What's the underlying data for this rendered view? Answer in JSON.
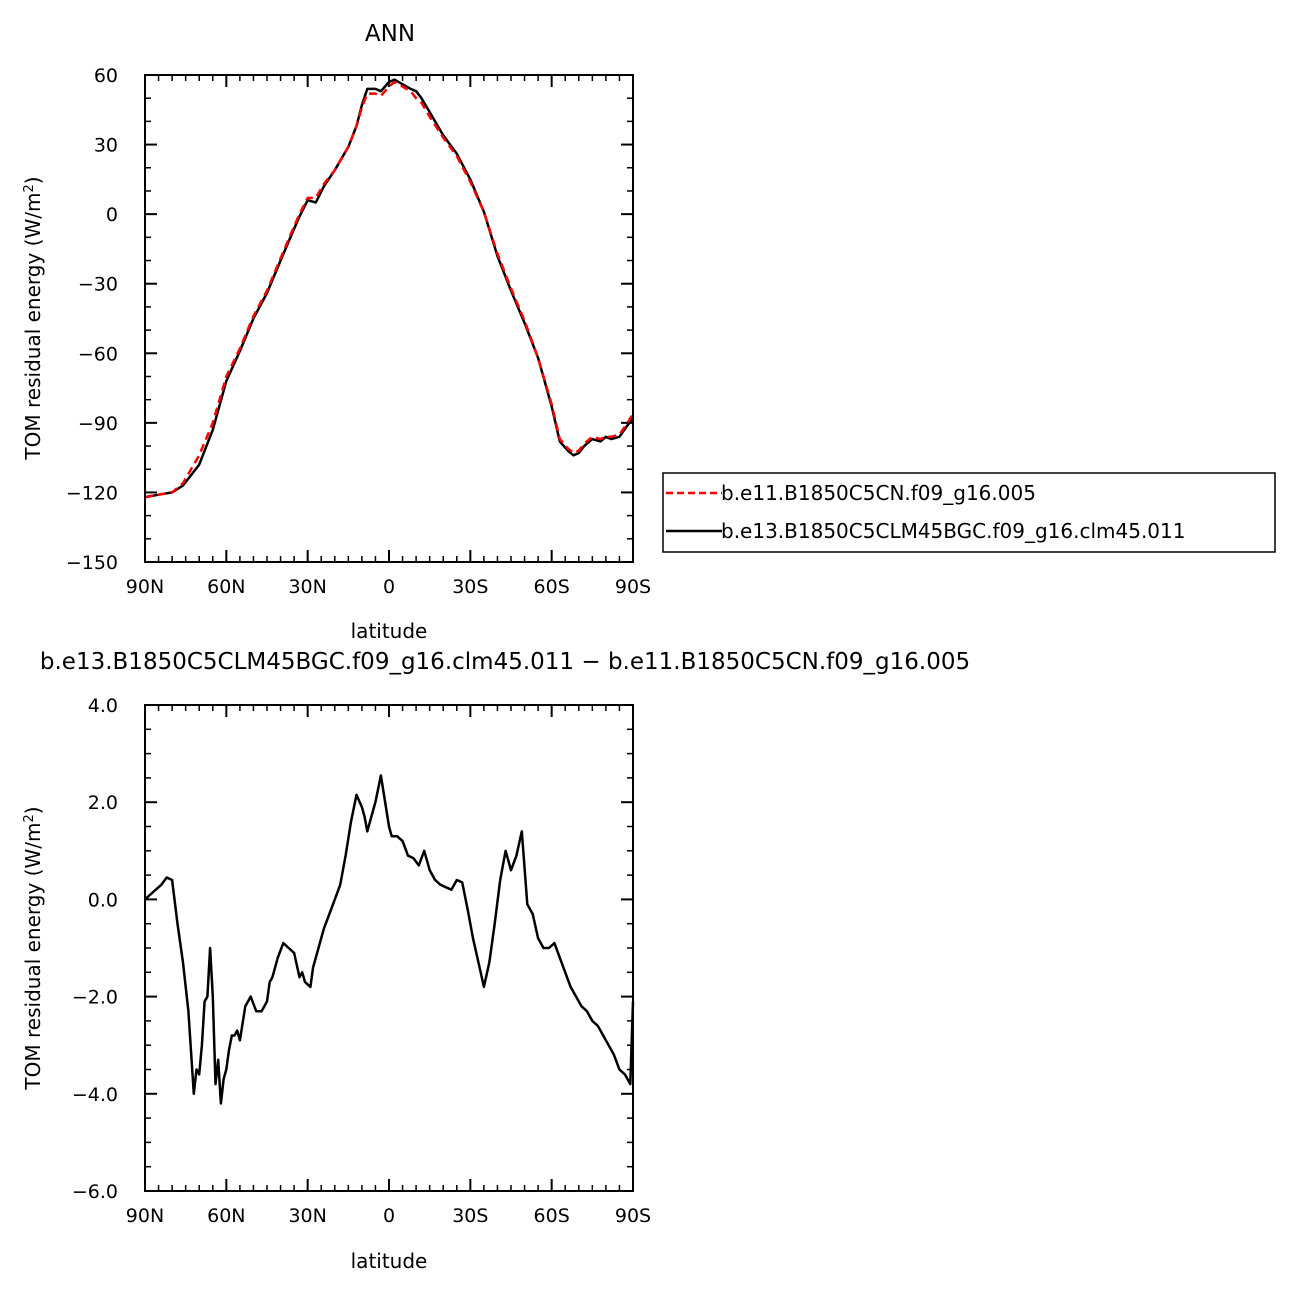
{
  "chart_data": [
    {
      "type": "line",
      "title": "ANN",
      "xlabel": "latitude",
      "ylabel_main": "TOM residual energy (W/m",
      "ylabel_sup": "2",
      "ylabel_close": ")",
      "xlim": [
        90,
        -90
      ],
      "ylim": [
        -150,
        60
      ],
      "x_ticks": [
        90,
        60,
        30,
        0,
        -30,
        -60,
        -90
      ],
      "x_tick_labels": [
        "90N",
        "60N",
        "30N",
        "0",
        "30S",
        "60S",
        "90S"
      ],
      "y_ticks": [
        60,
        30,
        0,
        -30,
        -60,
        -90,
        -120,
        -150
      ],
      "y_tick_labels": [
        "60",
        "30",
        "0",
        "−30",
        "−60",
        "−90",
        "−120",
        "−150"
      ],
      "legend_position": "right",
      "series": [
        {
          "name": "b.e11.B1850C5CN.f09_g16.005",
          "color": "#ff0000",
          "dashed": true,
          "x": [
            90,
            85,
            80,
            76,
            72,
            70,
            65,
            60,
            55,
            50,
            45,
            40,
            36,
            33,
            30,
            27,
            24,
            20,
            15,
            12,
            10,
            8,
            5,
            3,
            0,
            -2,
            -5,
            -8,
            -10,
            -12,
            -15,
            -20,
            -25,
            -30,
            -35,
            -40,
            -45,
            -50,
            -55,
            -60,
            -63,
            -66,
            -68,
            -70,
            -72,
            -75,
            -78,
            -80,
            -82,
            -85,
            -88,
            -90
          ],
          "y": [
            -122,
            -121,
            -120,
            -116,
            -108,
            -104,
            -90,
            -70,
            -58,
            -44,
            -33,
            -19,
            -8,
            0,
            7,
            7,
            13,
            19,
            29,
            38,
            46,
            52,
            52,
            51,
            55,
            57,
            55,
            53,
            50,
            48,
            42,
            33,
            25,
            14,
            1,
            -17,
            -32,
            -46,
            -62,
            -82,
            -97,
            -101,
            -103,
            -102,
            -99,
            -96,
            -97,
            -96,
            -96,
            -95,
            -90,
            -86
          ]
        },
        {
          "name": "b.e13.B1850C5CLM45BGC.f09_g16.clm45.011",
          "color": "#000000",
          "dashed": false,
          "x": [
            90,
            85,
            80,
            76,
            72,
            70,
            65,
            60,
            55,
            50,
            45,
            40,
            36,
            33,
            30,
            27,
            24,
            20,
            15,
            12,
            10,
            8,
            5,
            3,
            0,
            -2,
            -5,
            -8,
            -10,
            -12,
            -15,
            -20,
            -25,
            -30,
            -35,
            -40,
            -45,
            -50,
            -55,
            -60,
            -63,
            -66,
            -68,
            -70,
            -72,
            -75,
            -78,
            -80,
            -82,
            -85,
            -88,
            -90
          ],
          "y": [
            -122,
            -121,
            -120,
            -117,
            -111,
            -108,
            -93,
            -72,
            -59,
            -45,
            -34,
            -20,
            -9,
            -1,
            6,
            5,
            12,
            19,
            29,
            38,
            47,
            54,
            54,
            53,
            57,
            58,
            56,
            54,
            53,
            50,
            44,
            34,
            26,
            15,
            1,
            -18,
            -33,
            -47,
            -62,
            -83,
            -98,
            -102,
            -104,
            -103,
            -100,
            -97,
            -98,
            -96,
            -97,
            -96,
            -91,
            -88
          ]
        }
      ]
    },
    {
      "type": "line",
      "title": "b.e13.B1850C5CLM45BGC.f09_g16.clm45.011 − b.e11.B1850C5CN.f09_g16.005",
      "xlabel": "latitude",
      "ylabel_main": "TOM residual energy (W/m",
      "ylabel_sup": "2",
      "ylabel_close": ")",
      "xlim": [
        90,
        -90
      ],
      "ylim": [
        -6.0,
        4.0
      ],
      "x_ticks": [
        90,
        60,
        30,
        0,
        -30,
        -60,
        -90
      ],
      "x_tick_labels": [
        "90N",
        "60N",
        "30N",
        "0",
        "30S",
        "60S",
        "90S"
      ],
      "y_ticks": [
        4,
        2,
        0,
        -2,
        -4,
        -6
      ],
      "y_tick_labels": [
        "4.0",
        "2.0",
        "0.0",
        "−2.0",
        "−4.0",
        "−6.0"
      ],
      "series": [
        {
          "color": "#000000",
          "x": [
            90,
            88,
            86,
            84,
            82,
            80,
            78,
            76,
            74,
            72,
            71,
            70,
            69,
            68,
            67,
            66,
            65,
            64,
            63,
            62,
            61,
            60,
            59,
            58,
            57,
            56,
            55,
            53,
            51,
            49,
            47,
            45,
            44,
            43,
            41,
            39,
            37,
            35,
            33,
            32,
            31,
            29,
            28,
            26,
            24,
            22,
            20,
            18,
            16,
            14,
            12,
            10,
            9,
            8,
            7,
            5,
            3,
            2,
            0,
            -1,
            -3,
            -5,
            -7,
            -9,
            -11,
            -13,
            -15,
            -17,
            -19,
            -21,
            -23,
            -25,
            -27,
            -29,
            -31,
            -33,
            -35,
            -37,
            -39,
            -41,
            -43,
            -45,
            -47,
            -49,
            -51,
            -53,
            -55,
            -57,
            -59,
            -61,
            -63,
            -65,
            -67,
            -69,
            -71,
            -73,
            -75,
            -77,
            -79,
            -81,
            -83,
            -85,
            -87,
            -89,
            -90
          ],
          "y": [
            0.0,
            0.1,
            0.2,
            0.3,
            0.45,
            0.4,
            -0.5,
            -1.3,
            -2.3,
            -4.0,
            -3.5,
            -3.6,
            -3.0,
            -2.1,
            -2.0,
            -1.0,
            -2.0,
            -3.8,
            -3.3,
            -4.2,
            -3.7,
            -3.5,
            -3.1,
            -2.8,
            -2.8,
            -2.7,
            -2.9,
            -2.2,
            -2.0,
            -2.3,
            -2.3,
            -2.1,
            -1.7,
            -1.6,
            -1.2,
            -0.9,
            -1.0,
            -1.1,
            -1.6,
            -1.5,
            -1.7,
            -1.8,
            -1.4,
            -1.0,
            -0.6,
            -0.3,
            0.0,
            0.3,
            0.9,
            1.6,
            2.15,
            1.9,
            1.7,
            1.4,
            1.6,
            2.0,
            2.55,
            2.2,
            1.5,
            1.3,
            1.3,
            1.2,
            0.9,
            0.85,
            0.7,
            1.0,
            0.6,
            0.4,
            0.3,
            0.25,
            0.2,
            0.4,
            0.35,
            -0.2,
            -0.8,
            -1.3,
            -1.8,
            -1.3,
            -0.5,
            0.4,
            1.0,
            0.6,
            0.9,
            1.4,
            -0.1,
            -0.3,
            -0.8,
            -1.0,
            -1.0,
            -0.9,
            -1.2,
            -1.5,
            -1.8,
            -2.0,
            -2.2,
            -2.3,
            -2.5,
            -2.6,
            -2.8,
            -3.0,
            -3.2,
            -3.5,
            -3.6,
            -3.8,
            -2.1
          ]
        }
      ]
    }
  ]
}
